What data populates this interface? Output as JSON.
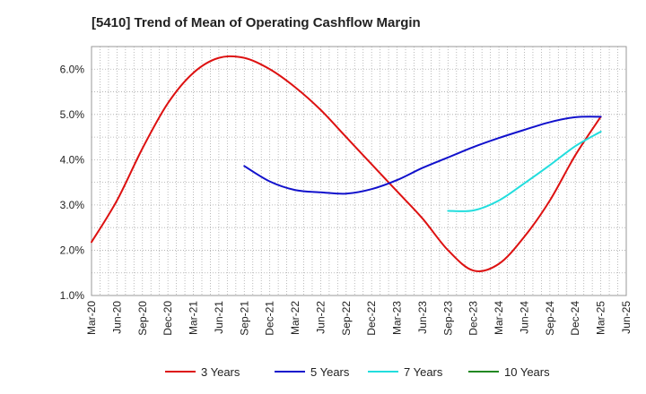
{
  "chart_data": {
    "type": "line",
    "title": "[5410]  Trend of Mean of Operating Cashflow Margin",
    "xlabel": "",
    "ylabel": "",
    "x_ticks": [
      "Mar-20",
      "Jun-20",
      "Sep-20",
      "Dec-20",
      "Mar-21",
      "Jun-21",
      "Sep-21",
      "Dec-21",
      "Mar-22",
      "Jun-22",
      "Sep-22",
      "Dec-22",
      "Mar-23",
      "Jun-23",
      "Sep-23",
      "Dec-23",
      "Mar-24",
      "Jun-24",
      "Sep-24",
      "Dec-24",
      "Mar-25",
      "Jun-25"
    ],
    "y_ticks": [
      "1.0%",
      "2.0%",
      "3.0%",
      "4.0%",
      "5.0%",
      "6.0%"
    ],
    "ylim": [
      1.0,
      6.5
    ],
    "grid": true,
    "legend_position": "bottom",
    "series": [
      {
        "name": "3 Years",
        "color": "#dd1111",
        "points": [
          [
            "Mar-20",
            2.18
          ],
          [
            "Jun-20",
            3.1
          ],
          [
            "Sep-20",
            4.25
          ],
          [
            "Dec-20",
            5.25
          ],
          [
            "Mar-21",
            5.92
          ],
          [
            "Jun-21",
            6.25
          ],
          [
            "Sep-21",
            6.25
          ],
          [
            "Dec-21",
            6.0
          ],
          [
            "Mar-22",
            5.6
          ],
          [
            "Jun-22",
            5.1
          ],
          [
            "Sep-22",
            4.5
          ],
          [
            "Dec-22",
            3.9
          ],
          [
            "Mar-23",
            3.3
          ],
          [
            "Jun-23",
            2.7
          ],
          [
            "Sep-23",
            2.0
          ],
          [
            "Dec-23",
            1.55
          ],
          [
            "Mar-24",
            1.7
          ],
          [
            "Jun-24",
            2.3
          ],
          [
            "Sep-24",
            3.1
          ],
          [
            "Dec-24",
            4.1
          ],
          [
            "Mar-25",
            4.95
          ]
        ]
      },
      {
        "name": "5 Years",
        "color": "#1111cc",
        "points": [
          [
            "Sep-21",
            3.86
          ],
          [
            "Dec-21",
            3.52
          ],
          [
            "Mar-22",
            3.33
          ],
          [
            "Jun-22",
            3.28
          ],
          [
            "Sep-22",
            3.25
          ],
          [
            "Dec-22",
            3.35
          ],
          [
            "Mar-23",
            3.55
          ],
          [
            "Jun-23",
            3.82
          ],
          [
            "Sep-23",
            4.05
          ],
          [
            "Dec-23",
            4.28
          ],
          [
            "Mar-24",
            4.48
          ],
          [
            "Jun-24",
            4.66
          ],
          [
            "Sep-24",
            4.83
          ],
          [
            "Dec-24",
            4.94
          ],
          [
            "Mar-25",
            4.95
          ]
        ]
      },
      {
        "name": "7 Years",
        "color": "#22dddd",
        "points": [
          [
            "Sep-23",
            2.87
          ],
          [
            "Dec-23",
            2.88
          ],
          [
            "Mar-24",
            3.1
          ],
          [
            "Jun-24",
            3.48
          ],
          [
            "Sep-24",
            3.88
          ],
          [
            "Dec-24",
            4.3
          ],
          [
            "Mar-25",
            4.62
          ]
        ]
      },
      {
        "name": "10 Years",
        "color": "#228822",
        "points": []
      }
    ]
  }
}
